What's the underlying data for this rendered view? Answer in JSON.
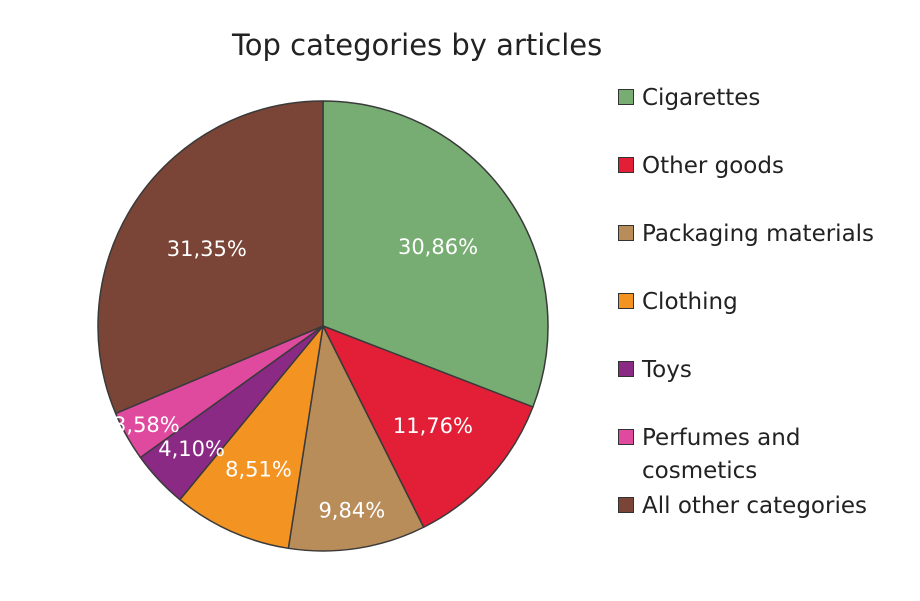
{
  "chart_data": {
    "type": "pie",
    "title": "Top categories by articles",
    "legend_position": "right",
    "slices": [
      {
        "name": "Cigarettes",
        "value": 30.86,
        "label": "30,86%",
        "color": "#77ad73"
      },
      {
        "name": "Other goods",
        "value": 11.76,
        "label": "11,76%",
        "color": "#e21f36"
      },
      {
        "name": "Packaging materials",
        "value": 9.84,
        "label": "9,84%",
        "color": "#b88d5a"
      },
      {
        "name": "Clothing",
        "value": 8.51,
        "label": "8,51%",
        "color": "#f39321"
      },
      {
        "name": "Toys",
        "value": 4.1,
        "label": "4,10%",
        "color": "#8a2a85"
      },
      {
        "name": "Perfumes and cosmetics",
        "value": 3.58,
        "label": "3,58%",
        "color": "#df4a9f"
      },
      {
        "name": "All other categories",
        "value": 31.35,
        "label": "31,35%",
        "color": "#7a4436"
      }
    ]
  }
}
